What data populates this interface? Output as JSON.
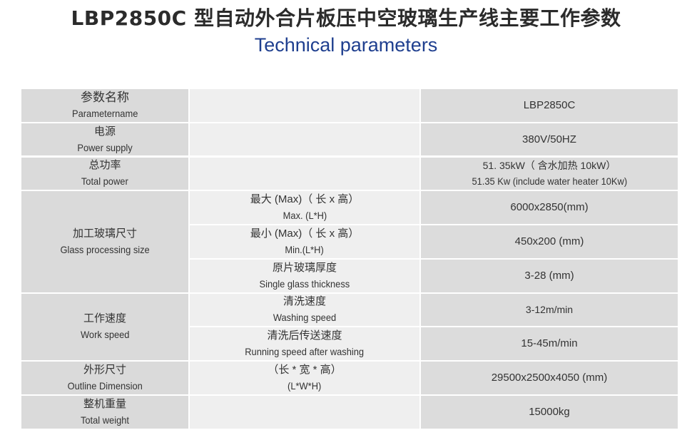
{
  "header": {
    "title": "LBP2850C 型自动外合片板压中空玻璃生产线主要工作参数",
    "subtitle": "Technical parameters"
  },
  "table": {
    "header_row": {
      "zh": "参数名称",
      "en": "Parametername",
      "value": "LBP2850C"
    },
    "power_supply": {
      "zh": "电源",
      "en": "Power supply",
      "value": "380V/50HZ"
    },
    "total_power": {
      "zh": "总功率",
      "en": "Total power",
      "value_zh": "51. 35kW（ 含水加热 10kW）",
      "value_en": "51.35 Kw (include water heater 10Kw)"
    },
    "glass_size": {
      "zh": "加工玻璃尺寸",
      "en": "Glass processing size",
      "sub": [
        {
          "zh": "最大 (Max)（ 长 x 高）",
          "en": "Max. (L*H)",
          "value": "6000x2850(mm)"
        },
        {
          "zh": "最小 (Max)（ 长 x 高）",
          "en": "Min.(L*H)",
          "value": "450x200 (mm)"
        },
        {
          "zh": "原片玻璃厚度",
          "en": "Single glass thickness",
          "value": "3-28 (mm)"
        }
      ]
    },
    "work_speed": {
      "zh": "工作速度",
      "en": "Work speed",
      "sub": [
        {
          "zh": "清洗速度",
          "en": "Washing speed",
          "value": "3-12m/min"
        },
        {
          "zh": "清洗后传送速度",
          "en": "Running speed after washing",
          "value": "15-45m/min"
        }
      ]
    },
    "outline": {
      "zh": "外形尺寸",
      "en": "Outline Dimension",
      "sub_zh": "（长 * 宽 * 高）",
      "sub_en": "(L*W*H)",
      "value": "29500x2500x4050 (mm)"
    },
    "weight": {
      "zh": "整机重量",
      "en": "Total weight",
      "value": "15000kg"
    }
  }
}
